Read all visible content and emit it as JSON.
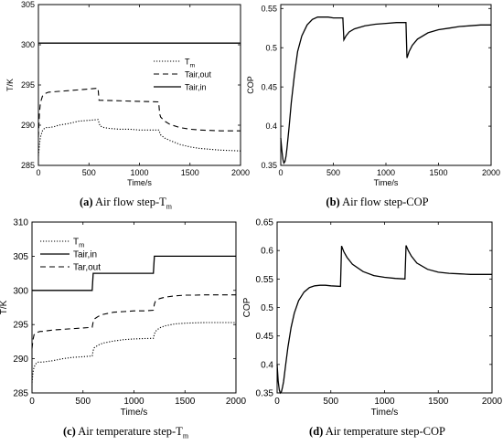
{
  "panels": [
    {
      "id": "a",
      "caption_letter": "(a)",
      "caption_text": "Air flow step-T",
      "caption_sub": "m",
      "chart_data": {
        "type": "line",
        "xlabel": "Time/s",
        "ylabel": "T/K",
        "xlim": [
          0,
          2000
        ],
        "ylim": [
          285,
          305
        ],
        "xticks": [
          0,
          500,
          1000,
          1500,
          2000
        ],
        "yticks": [
          285,
          290,
          295,
          300,
          305
        ],
        "grid": false,
        "legend_position": "right",
        "series": [
          {
            "name": "Tm",
            "legend_label": "T",
            "legend_sub": "m",
            "style": "dotted",
            "x": [
              0,
              10,
              20,
              40,
              60,
              80,
              100,
              150,
              200,
              300,
              400,
              500,
              590,
              600,
              610,
              650,
              700,
              800,
              900,
              1000,
              1100,
              1190,
              1200,
              1210,
              1250,
              1300,
              1400,
              1500,
              1600,
              1700,
              1800,
              1900,
              2000
            ],
            "y": [
              286.2,
              287.5,
              288.5,
              289.3,
              289.6,
              289.7,
              289.7,
              289.8,
              290.0,
              290.2,
              290.5,
              290.6,
              290.7,
              290.3,
              289.9,
              289.7,
              289.6,
              289.5,
              289.5,
              289.4,
              289.4,
              289.4,
              289.1,
              288.8,
              288.4,
              288.1,
              287.6,
              287.3,
              287.1,
              287.0,
              286.9,
              286.85,
              286.8
            ]
          },
          {
            "name": "Tair,out",
            "legend_label": "Tair,out",
            "style": "dashed",
            "x": [
              0,
              10,
              20,
              40,
              60,
              80,
              100,
              200,
              300,
              400,
              500,
              590,
              600,
              1190,
              1200,
              1210,
              1250,
              1300,
              1400,
              1500,
              1600,
              1700,
              1800,
              1900,
              2000
            ],
            "y": [
              288.5,
              291.5,
              292.8,
              293.6,
              293.9,
              294.0,
              294.1,
              294.2,
              294.3,
              294.4,
              294.5,
              294.6,
              293.1,
              292.9,
              291.4,
              291.0,
              290.5,
              290.1,
              289.7,
              289.5,
              289.4,
              289.35,
              289.3,
              289.3,
              289.3
            ]
          },
          {
            "name": "Tair,in",
            "legend_label": "Tair,in",
            "style": "solid",
            "x": [
              0,
              2000
            ],
            "y": [
              300.2,
              300.2
            ]
          }
        ]
      }
    },
    {
      "id": "b",
      "caption_letter": "(b)",
      "caption_text": "Air flow step-COP",
      "caption_sub": "",
      "chart_data": {
        "type": "line",
        "xlabel": "Time/s",
        "ylabel": "COP",
        "xlim": [
          0,
          2000
        ],
        "ylim": [
          0.35,
          0.555
        ],
        "xticks": [
          0,
          500,
          1000,
          1500,
          2000
        ],
        "yticks": [
          0.35,
          0.4,
          0.45,
          0.5,
          0.55
        ],
        "grid": false,
        "series": [
          {
            "name": "COP",
            "style": "solid",
            "x": [
              0,
              10,
              20,
              30,
              40,
              50,
              60,
              80,
              100,
              130,
              160,
              200,
              250,
              300,
              350,
              400,
              450,
              500,
              590,
              600,
              620,
              650,
              700,
              800,
              900,
              1000,
              1100,
              1190,
              1200,
              1220,
              1250,
              1300,
              1400,
              1500,
              1600,
              1700,
              1800,
              1900,
              2000
            ],
            "y": [
              0.385,
              0.37,
              0.358,
              0.353,
              0.355,
              0.362,
              0.373,
              0.4,
              0.43,
              0.465,
              0.495,
              0.515,
              0.529,
              0.536,
              0.539,
              0.539,
              0.539,
              0.538,
              0.538,
              0.51,
              0.515,
              0.52,
              0.524,
              0.528,
              0.53,
              0.531,
              0.532,
              0.532,
              0.487,
              0.495,
              0.503,
              0.511,
              0.519,
              0.523,
              0.525,
              0.527,
              0.528,
              0.529,
              0.529
            ]
          }
        ]
      }
    },
    {
      "id": "c",
      "caption_letter": "(c)",
      "caption_text": "Air temperature step-T",
      "caption_sub": "m",
      "chart_data": {
        "type": "line",
        "xlabel": "Time/s",
        "ylabel": "T/K",
        "xlim": [
          0,
          2000
        ],
        "ylim": [
          285,
          310
        ],
        "xticks": [
          0,
          500,
          1000,
          1500,
          2000
        ],
        "yticks": [
          285,
          290,
          295,
          300,
          305,
          310
        ],
        "grid": false,
        "legend_position": "top-left",
        "series": [
          {
            "name": "Tm",
            "legend_label": "T",
            "legend_sub": "m",
            "style": "dotted",
            "x": [
              0,
              10,
              20,
              40,
              60,
              80,
              100,
              200,
              300,
              400,
              500,
              590,
              600,
              610,
              650,
              700,
              800,
              900,
              1000,
              1100,
              1190,
              1200,
              1210,
              1250,
              1300,
              1400,
              1500,
              1600,
              1700,
              1800,
              1900,
              2000
            ],
            "y": [
              286.5,
              288.0,
              288.8,
              289.3,
              289.5,
              289.5,
              289.5,
              289.7,
              290.0,
              290.2,
              290.3,
              290.4,
              291.2,
              291.6,
              292.0,
              292.3,
              292.6,
              292.8,
              292.9,
              292.95,
              293.0,
              293.6,
              294.0,
              294.5,
              294.8,
              295.1,
              295.2,
              295.25,
              295.3,
              295.3,
              295.3,
              295.3
            ]
          },
          {
            "name": "Tair,in",
            "legend_label": "Tair,in",
            "style": "solid",
            "x": [
              0,
              590,
              600,
              1190,
              1200,
              2000
            ],
            "y": [
              300,
              300,
              302.5,
              302.5,
              305,
              305
            ]
          },
          {
            "name": "Tar,out",
            "legend_label": "Tar,out",
            "style": "dashed",
            "x": [
              0,
              10,
              20,
              40,
              60,
              80,
              100,
              200,
              300,
              400,
              500,
              590,
              600,
              610,
              650,
              700,
              800,
              900,
              1000,
              1100,
              1190,
              1200,
              1210,
              1250,
              1300,
              1400,
              1500,
              1600,
              1700,
              1800,
              1900,
              2000
            ],
            "y": [
              291.5,
              292.8,
              293.5,
              293.8,
              293.9,
              294.0,
              294.0,
              294.2,
              294.3,
              294.4,
              294.5,
              294.6,
              295.4,
              295.8,
              296.2,
              296.5,
              296.8,
              296.9,
              297.0,
              297.0,
              297.1,
              298.0,
              298.4,
              298.8,
              299.0,
              299.2,
              299.3,
              299.3,
              299.35,
              299.35,
              299.35,
              299.35
            ]
          }
        ]
      }
    },
    {
      "id": "d",
      "caption_letter": "(d)",
      "caption_text": "Air temperature step-COP",
      "caption_sub": "",
      "chart_data": {
        "type": "line",
        "xlabel": "Time/s",
        "ylabel": "COP",
        "xlim": [
          0,
          2000
        ],
        "ylim": [
          0.35,
          0.65
        ],
        "xticks": [
          0,
          500,
          1000,
          1500,
          2000
        ],
        "yticks": [
          0.35,
          0.4,
          0.45,
          0.5,
          0.55,
          0.6,
          0.65
        ],
        "grid": false,
        "series": [
          {
            "name": "COP",
            "style": "solid",
            "x": [
              0,
              10,
              20,
              30,
              40,
              50,
              60,
              80,
              100,
              130,
              160,
              200,
              250,
              300,
              350,
              400,
              450,
              500,
              590,
              600,
              620,
              650,
              700,
              800,
              900,
              1000,
              1100,
              1190,
              1200,
              1220,
              1250,
              1300,
              1400,
              1500,
              1600,
              1700,
              1800,
              1900,
              2000
            ],
            "y": [
              0.4,
              0.37,
              0.355,
              0.35,
              0.352,
              0.36,
              0.37,
              0.4,
              0.43,
              0.465,
              0.49,
              0.512,
              0.527,
              0.535,
              0.538,
              0.539,
              0.539,
              0.538,
              0.537,
              0.608,
              0.598,
              0.588,
              0.576,
              0.563,
              0.556,
              0.553,
              0.551,
              0.55,
              0.609,
              0.6,
              0.59,
              0.578,
              0.567,
              0.562,
              0.56,
              0.559,
              0.558,
              0.558,
              0.558
            ]
          }
        ]
      }
    }
  ]
}
